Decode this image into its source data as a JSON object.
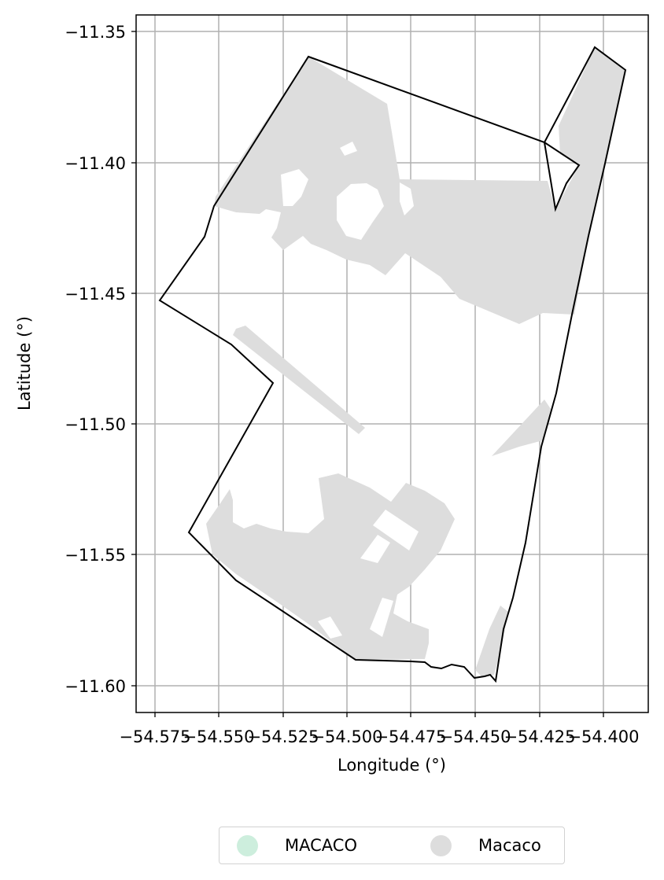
{
  "map": {
    "xlabel": "Longitude (°)",
    "ylabel": "Latitude (°)",
    "x_ticks": [
      "−54.575",
      "−54.550",
      "−54.525",
      "−54.500",
      "−54.475",
      "−54.450",
      "−54.425",
      "−54.400"
    ],
    "y_ticks": [
      "−11.35",
      "−11.40",
      "−11.45",
      "−11.50",
      "−11.55",
      "−11.60"
    ],
    "grid": true,
    "fill_color": "#dddddd",
    "boundary_color": "#000000"
  },
  "legend": {
    "placement": "bottom-center",
    "items": [
      {
        "label": "MACACO",
        "color": "#cdeedd"
      },
      {
        "label": "Macaco",
        "color": "#dddddd"
      }
    ]
  }
}
